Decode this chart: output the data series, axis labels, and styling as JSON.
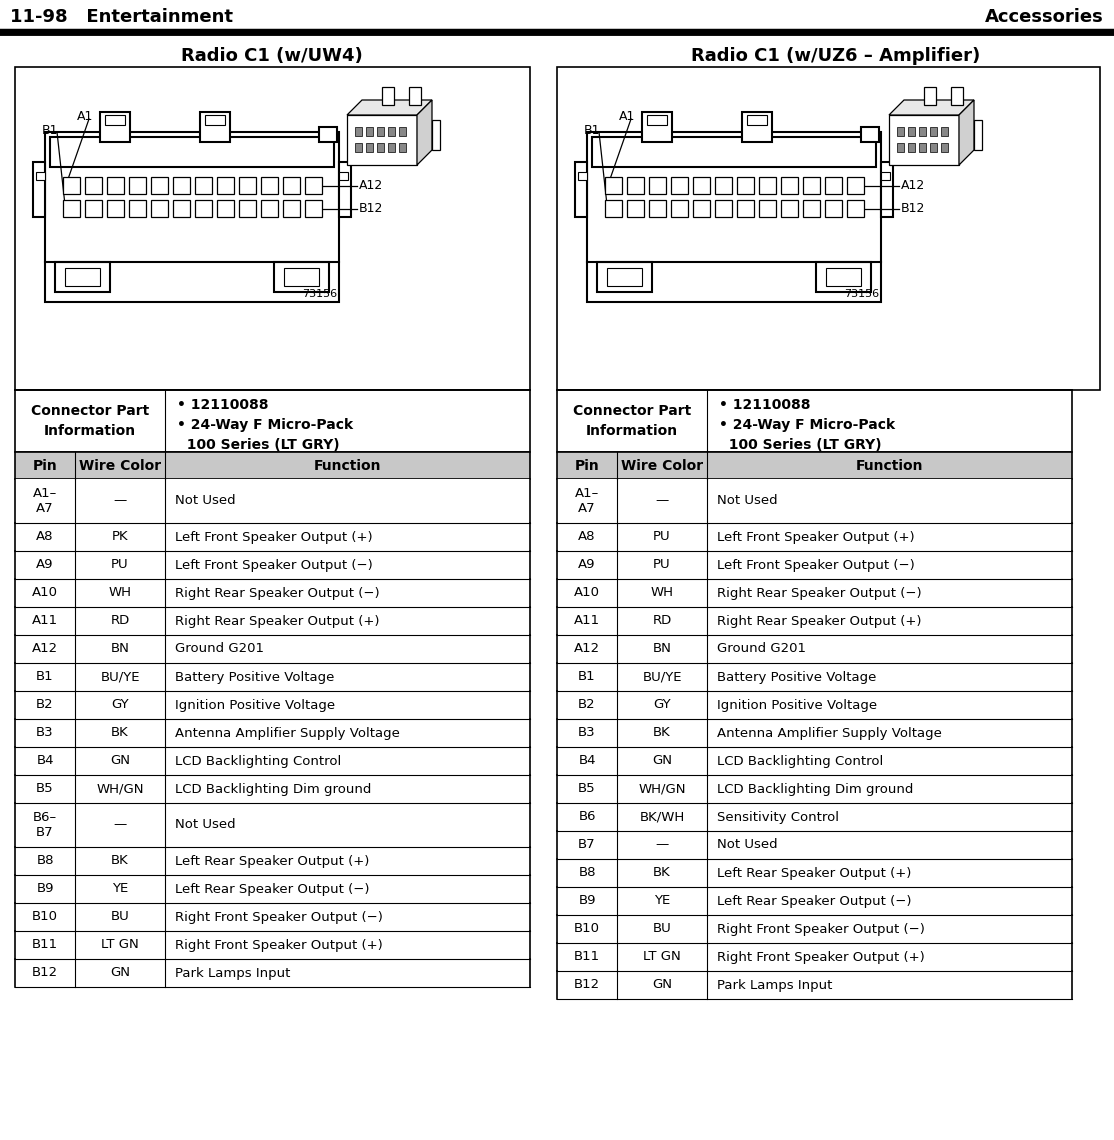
{
  "page_label_left": "11-98   Entertainment",
  "page_label_right": "Accessories",
  "title_left": "Radio C1 (w/UW4)",
  "title_right": "Radio C1 (w/UZ6 – Amplifier)",
  "diagram_code": "73156",
  "table_headers": [
    "Pin",
    "Wire Color",
    "Function"
  ],
  "left_table": [
    [
      "A1–\nA7",
      "—",
      "Not Used"
    ],
    [
      "A8",
      "PK",
      "Left Front Speaker Output (+)"
    ],
    [
      "A9",
      "PU",
      "Left Front Speaker Output (−)"
    ],
    [
      "A10",
      "WH",
      "Right Rear Speaker Output (−)"
    ],
    [
      "A11",
      "RD",
      "Right Rear Speaker Output (+)"
    ],
    [
      "A12",
      "BN",
      "Ground G201"
    ],
    [
      "B1",
      "BU/YE",
      "Battery Positive Voltage"
    ],
    [
      "B2",
      "GY",
      "Ignition Positive Voltage"
    ],
    [
      "B3",
      "BK",
      "Antenna Amplifier Supply Voltage"
    ],
    [
      "B4",
      "GN",
      "LCD Backlighting Control"
    ],
    [
      "B5",
      "WH/GN",
      "LCD Backlighting Dim ground"
    ],
    [
      "B6–\nB7",
      "—",
      "Not Used"
    ],
    [
      "B8",
      "BK",
      "Left Rear Speaker Output (+)"
    ],
    [
      "B9",
      "YE",
      "Left Rear Speaker Output (−)"
    ],
    [
      "B10",
      "BU",
      "Right Front Speaker Output (−)"
    ],
    [
      "B11",
      "LT GN",
      "Right Front Speaker Output (+)"
    ],
    [
      "B12",
      "GN",
      "Park Lamps Input"
    ]
  ],
  "right_table": [
    [
      "A1–\nA7",
      "—",
      "Not Used"
    ],
    [
      "A8",
      "PU",
      "Left Front Speaker Output (+)"
    ],
    [
      "A9",
      "PU",
      "Left Front Speaker Output (−)"
    ],
    [
      "A10",
      "WH",
      "Right Rear Speaker Output (−)"
    ],
    [
      "A11",
      "RD",
      "Right Rear Speaker Output (+)"
    ],
    [
      "A12",
      "BN",
      "Ground G201"
    ],
    [
      "B1",
      "BU/YE",
      "Battery Positive Voltage"
    ],
    [
      "B2",
      "GY",
      "Ignition Positive Voltage"
    ],
    [
      "B3",
      "BK",
      "Antenna Amplifier Supply Voltage"
    ],
    [
      "B4",
      "GN",
      "LCD Backlighting Control"
    ],
    [
      "B5",
      "WH/GN",
      "LCD Backlighting Dim ground"
    ],
    [
      "B6",
      "BK/WH",
      "Sensitivity Control"
    ],
    [
      "B7",
      "—",
      "Not Used"
    ],
    [
      "B8",
      "BK",
      "Left Rear Speaker Output (+)"
    ],
    [
      "B9",
      "YE",
      "Left Rear Speaker Output (−)"
    ],
    [
      "B10",
      "BU",
      "Right Front Speaker Output (−)"
    ],
    [
      "B11",
      "LT GN",
      "Right Front Speaker Output (+)"
    ],
    [
      "B12",
      "GN",
      "Park Lamps Input"
    ]
  ],
  "bg_color": "#ffffff",
  "line_color": "#000000"
}
